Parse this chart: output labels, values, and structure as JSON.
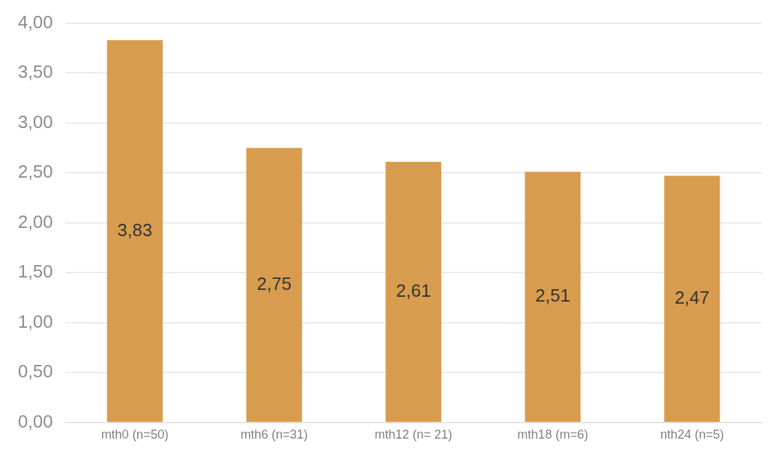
{
  "chart_data": {
    "type": "bar",
    "categories": [
      "mth0 (n=50)",
      "mth6 (n=31)",
      "mth12 (n= 21)",
      "mth18 (m=6)",
      "nth24 (n=5)"
    ],
    "values": [
      3.83,
      2.75,
      2.61,
      2.51,
      2.47
    ],
    "color": "#d89c4f",
    "value_labels": [
      "3,83",
      "2,75",
      "2,61",
      "2,51",
      "2,47"
    ],
    "ylim": [
      0,
      4
    ],
    "yticks": [
      {
        "value": 0,
        "label": "0,00"
      },
      {
        "value": 0.5,
        "label": "0,50"
      },
      {
        "value": 1,
        "label": "1,00"
      },
      {
        "value": 1.5,
        "label": "1,50"
      },
      {
        "value": 2,
        "label": "2,00"
      },
      {
        "value": 2.5,
        "label": "2,50"
      },
      {
        "value": 3,
        "label": "3,00"
      },
      {
        "value": 3.5,
        "label": "3,50"
      },
      {
        "value": 4,
        "label": "4,00"
      }
    ],
    "grid": "y",
    "legend": false
  }
}
